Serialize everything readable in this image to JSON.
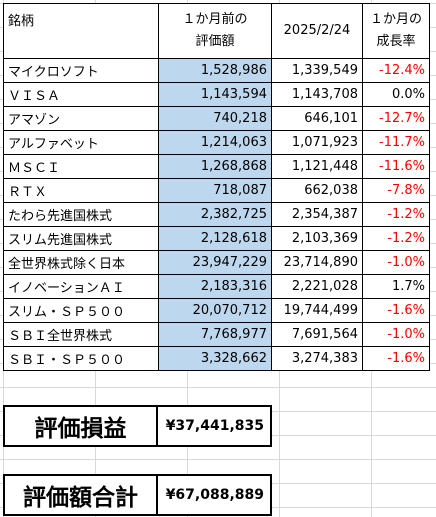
{
  "header": {
    "name": "銘柄",
    "prev_line1": "１か月前の",
    "prev_line2": "評価額",
    "current": "2025/2/24",
    "rate_line1": "１か月の",
    "rate_line2": "成長率"
  },
  "rows": [
    {
      "name": "マイクロソフト",
      "prev": "1,528,986",
      "current": "1,339,549",
      "rate": "-12.4%"
    },
    {
      "name": "ＶＩＳＡ",
      "prev": "1,143,594",
      "current": "1,143,708",
      "rate": "0.0%"
    },
    {
      "name": "アマゾン",
      "prev": "740,218",
      "current": "646,101",
      "rate": "-12.7%"
    },
    {
      "name": "アルファベット",
      "prev": "1,214,063",
      "current": "1,071,923",
      "rate": "-11.7%"
    },
    {
      "name": "ＭＳＣＩ",
      "prev": "1,268,868",
      "current": "1,121,448",
      "rate": "-11.6%"
    },
    {
      "name": "ＲＴＸ",
      "prev": "718,087",
      "current": "662,038",
      "rate": "-7.8%"
    },
    {
      "name": "たわら先進国株式",
      "prev": "2,382,725",
      "current": "2,354,387",
      "rate": "-1.2%"
    },
    {
      "name": "スリム先進国株式",
      "prev": "2,128,618",
      "current": "2,103,369",
      "rate": "-1.2%"
    },
    {
      "name": "全世界株式除く日本",
      "prev": "23,947,229",
      "current": "23,714,890",
      "rate": "-1.0%"
    },
    {
      "name": "イノベーションＡＩ",
      "prev": "2,183,316",
      "current": "2,221,028",
      "rate": "1.7%"
    },
    {
      "name": "スリム・ＳＰ５００",
      "prev": "20,070,712",
      "current": "19,744,499",
      "rate": "-1.6%"
    },
    {
      "name": "ＳＢＩ全世界株式",
      "prev": "7,768,977",
      "current": "7,691,564",
      "rate": "-1.0%"
    },
    {
      "name": "ＳＢＩ・ＳＰ５００",
      "prev": "3,328,662",
      "current": "3,274,383",
      "rate": "-1.6%"
    }
  ],
  "summary": {
    "pnl_label": "評価損益",
    "pnl_value": "¥37,441,835",
    "total_label": "評価額合計",
    "total_value": "¥67,088,889"
  },
  "colors": {
    "prev_column_fill": "#bdd7ee",
    "negative_text": "#ff0000",
    "gridline": "#d9d9d9"
  }
}
